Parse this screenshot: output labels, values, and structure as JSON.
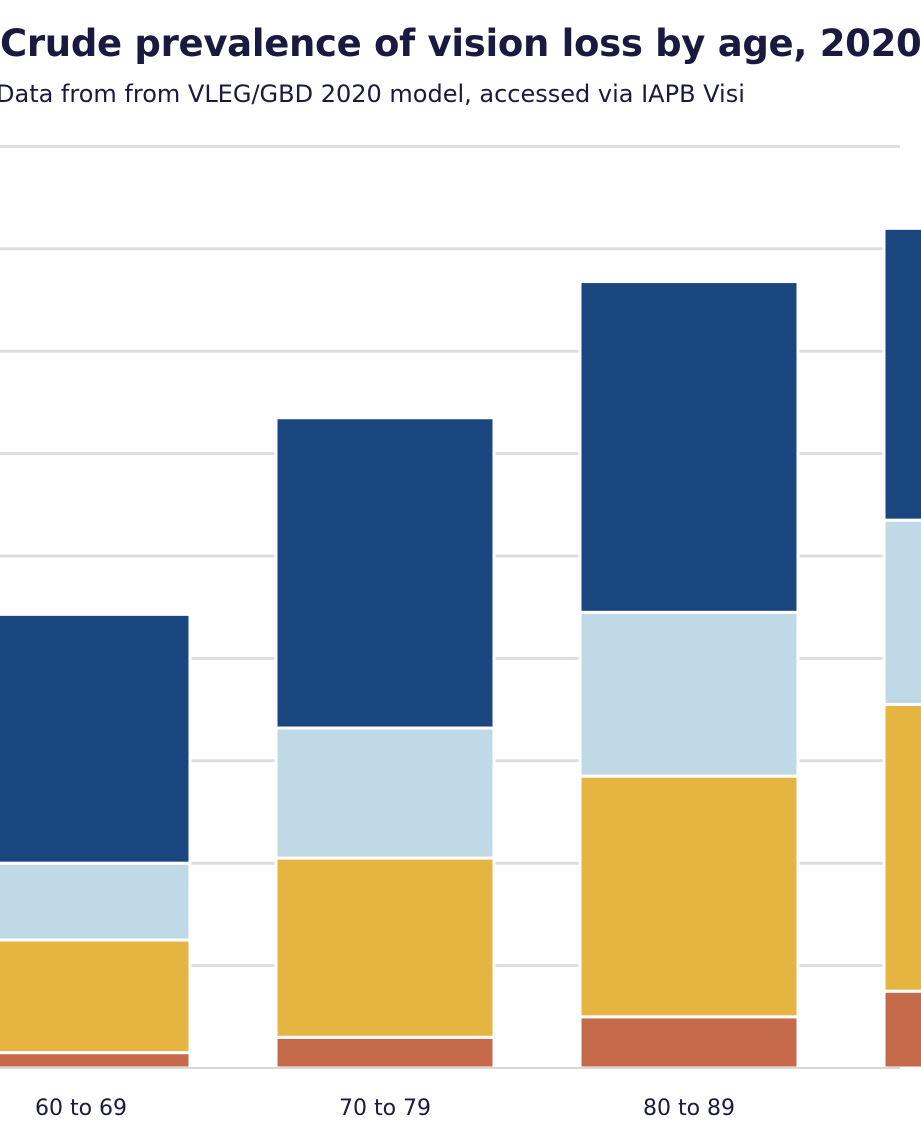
{
  "chart_data": {
    "type": "bar",
    "stacked": true,
    "title": "Crude prevalence of vision loss by age, 2020",
    "subtitle": "Data from from VLEG/GBD 2020 model, accessed via IAPB Visi",
    "categories": [
      "60 to 69",
      "70 to 79",
      "80 to 89",
      ""
    ],
    "series": [
      {
        "color": "#c46a4a",
        "values": [
          0.15,
          0.3,
          0.5,
          0.75
        ]
      },
      {
        "color": "#e6b441",
        "values": [
          1.1,
          1.75,
          2.35,
          2.8
        ]
      },
      {
        "color": "#c0d9e6",
        "values": [
          0.75,
          1.27,
          1.6,
          1.8
        ]
      },
      {
        "color": "#1a4680",
        "values": [
          2.43,
          3.03,
          3.23,
          2.85
        ]
      }
    ],
    "ylim": [
      0,
      9
    ],
    "grid": true
  }
}
